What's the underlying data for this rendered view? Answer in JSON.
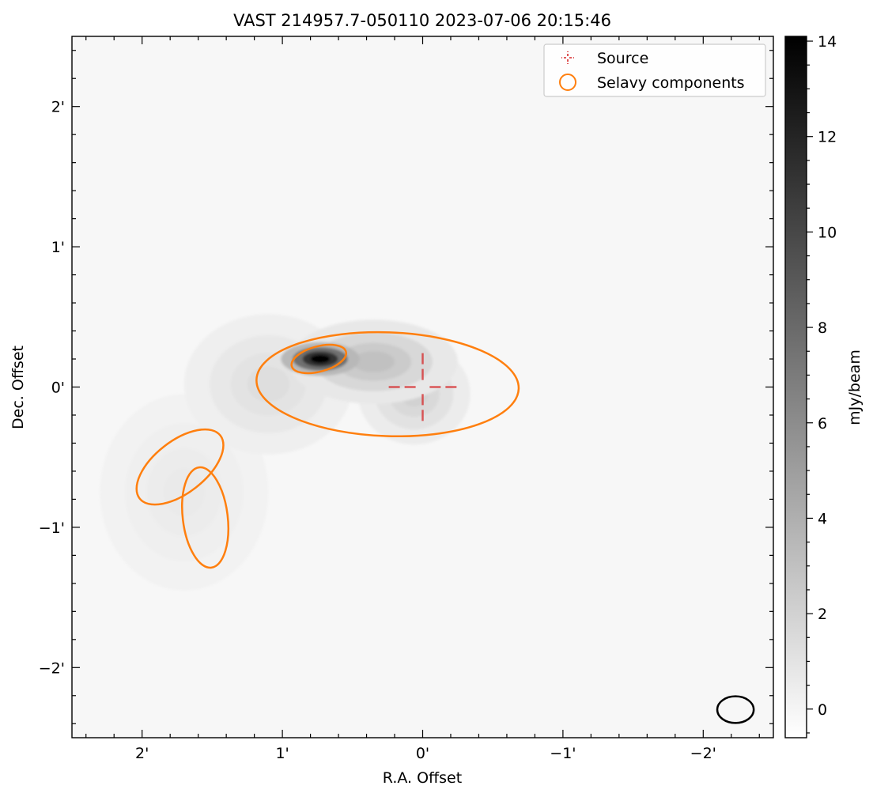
{
  "title": "VAST 214957.7-050110 2023-07-06 20:15:46",
  "xaxis": {
    "label": "R.A. Offset",
    "ticks": [
      {
        "value": 2,
        "label": "2'"
      },
      {
        "value": 1,
        "label": "1'"
      },
      {
        "value": 0,
        "label": "0'"
      },
      {
        "value": -1,
        "label": "−1'"
      },
      {
        "value": -2,
        "label": "−2'"
      }
    ],
    "range_arcmin": [
      2.5,
      -2.5
    ]
  },
  "yaxis": {
    "label": "Dec. Offset",
    "ticks": [
      {
        "value": 2,
        "label": "2'"
      },
      {
        "value": 1,
        "label": "1'"
      },
      {
        "value": 0,
        "label": "0'"
      },
      {
        "value": -1,
        "label": "−1'"
      },
      {
        "value": -2,
        "label": "−2'"
      }
    ],
    "range_arcmin": [
      -2.5,
      2.5
    ]
  },
  "legend": {
    "placement": "top-right",
    "items": [
      {
        "label": "Source",
        "marker": "crosshair",
        "color": "#d62728"
      },
      {
        "label": "Selavy components",
        "marker": "circle",
        "color": "#ff7f0e"
      }
    ]
  },
  "colorbar": {
    "label": "mJy/beam",
    "range": [
      -0.6,
      14.1
    ],
    "ticks": [
      {
        "value": 0,
        "label": "0"
      },
      {
        "value": 2,
        "label": "2"
      },
      {
        "value": 4,
        "label": "4"
      },
      {
        "value": 6,
        "label": "6"
      },
      {
        "value": 8,
        "label": "8"
      },
      {
        "value": 10,
        "label": "10"
      },
      {
        "value": 12,
        "label": "12"
      },
      {
        "value": 14,
        "label": "14"
      }
    ],
    "colormap": "gray_r"
  },
  "colors": {
    "source": "#d62728",
    "components": "#ff7f0e",
    "beam": "#000000",
    "background": "#ffffff"
  },
  "source": {
    "ra_offset": 0,
    "dec_offset": 0
  },
  "components": [
    {
      "ra": 0.25,
      "dec": 0.02,
      "major": 1.87,
      "minor": 0.74,
      "angle": 178
    },
    {
      "ra": 0.74,
      "dec": 0.2,
      "major": 0.4,
      "minor": 0.18,
      "angle": 15
    },
    {
      "ra": 1.73,
      "dec": -0.57,
      "major": 0.73,
      "minor": 0.37,
      "angle": 38
    },
    {
      "ra": 1.55,
      "dec": -0.93,
      "major": 0.72,
      "minor": 0.32,
      "angle": 97
    }
  ],
  "beam": {
    "ra": -2.23,
    "dec": -2.3,
    "major": 0.26,
    "minor": 0.19,
    "angle": 0
  },
  "emission": [
    {
      "ra": 0.73,
      "dec": 0.2,
      "sx": 0.14,
      "sy": 0.06,
      "peak": 14
    },
    {
      "ra": 0.35,
      "dec": 0.18,
      "sx": 0.3,
      "sy": 0.15,
      "peak": 3
    },
    {
      "ra": 0.06,
      "dec": -0.05,
      "sx": 0.2,
      "sy": 0.18,
      "peak": 2
    },
    {
      "ra": 1.1,
      "dec": 0.02,
      "sx": 0.3,
      "sy": 0.25,
      "peak": 1.3
    },
    {
      "ra": 1.7,
      "dec": -0.75,
      "sx": 0.3,
      "sy": 0.35,
      "peak": 0.6
    }
  ]
}
